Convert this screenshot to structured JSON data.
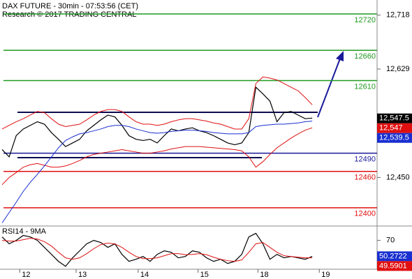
{
  "chart_data": [
    {
      "type": "line",
      "title": "DAX FUTURE - 30min - 07:53:56 (CET)",
      "subtitle": "Research © 2017 TRADING CENTRAL",
      "x": [
        0,
        1,
        2,
        3,
        4,
        5,
        6,
        7,
        8,
        9,
        10,
        11,
        12,
        13,
        14,
        15,
        16,
        17,
        18,
        19,
        20,
        21,
        22,
        23,
        24,
        25,
        26,
        27,
        28,
        29,
        30,
        31,
        32,
        33,
        34,
        35,
        36,
        37,
        38,
        39,
        40,
        41,
        42,
        43,
        44
      ],
      "xlim": [
        -0.3,
        53.2
      ],
      "xticks": [
        {
          "value": 2.5,
          "label": "12"
        },
        {
          "value": 10.5,
          "label": "13"
        },
        {
          "value": 19.3,
          "label": "14"
        },
        {
          "value": 27.8,
          "label": "15"
        },
        {
          "value": 36.3,
          "label": "18"
        },
        {
          "value": 45,
          "label": "19"
        }
      ],
      "ylim": [
        12371,
        12743
      ],
      "yticks": [
        {
          "value": 12718,
          "label": "12,718"
        },
        {
          "value": 12629,
          "label": "12,629"
        },
        {
          "value": 12450,
          "label": "12,450"
        }
      ],
      "series": [
        {
          "color": "#000000",
          "values": [
            12496,
            12484,
            12519,
            12530,
            12536,
            12542,
            12538,
            12524,
            12513,
            12501,
            12507,
            12513,
            12527,
            12536,
            12545,
            12553,
            12550,
            12536,
            12519,
            12513,
            12511,
            12513,
            12507,
            12519,
            12530,
            12527,
            12530,
            12532,
            12527,
            12524,
            12519,
            12513,
            12507,
            12504,
            12507,
            12524,
            12599,
            12588,
            12576,
            12542,
            12557,
            12559,
            12553,
            12547,
            12548
          ]
        },
        {
          "color": "#e01010",
          "values": [
            12530,
            12536,
            12542,
            12547,
            12553,
            12559,
            12557,
            12547,
            12538,
            12534,
            12536,
            12538,
            12545,
            12553,
            12559,
            12562,
            12562,
            12559,
            12550,
            12542,
            12538,
            12538,
            12536,
            12538,
            12542,
            12545,
            12547,
            12547,
            12545,
            12543,
            12540,
            12538,
            12534,
            12530,
            12530,
            12547,
            12605,
            12616,
            12614,
            12611,
            12605,
            12599,
            12593,
            12582,
            12570
          ]
        },
        {
          "color": "#e01010",
          "values": [
            12438,
            12450,
            12458,
            12467,
            12471,
            12473,
            12470,
            12467,
            12467,
            12469,
            12473,
            12478,
            12484,
            12488,
            12490,
            12492,
            12494,
            12496,
            12494,
            12492,
            12490,
            12490,
            12492,
            12494,
            12497,
            12499,
            12501,
            12501,
            12501,
            12500,
            12499,
            12498,
            12497,
            12496,
            12494,
            12484,
            12467,
            12476,
            12488,
            12499,
            12507,
            12515,
            12522,
            12528,
            12532
          ]
        },
        {
          "color": "#1a2fd0",
          "values": [
            12375,
            12392,
            12409,
            12427,
            12442,
            12455,
            12469,
            12484,
            12499,
            12511,
            12517,
            12522,
            12524,
            12527,
            12530,
            12534,
            12536,
            12536,
            12534,
            12530,
            12527,
            12524,
            12523,
            12524,
            12526,
            12527,
            12528,
            12528,
            12527,
            12526,
            12524,
            12523,
            12522,
            12522,
            12522,
            12524,
            12534,
            12536,
            12537,
            12538,
            12538,
            12539,
            12540,
            12542,
            12543
          ]
        }
      ],
      "levels": [
        {
          "value": 12720,
          "color": "#1f9a1f"
        },
        {
          "value": 12660,
          "color": "#1f9a1f"
        },
        {
          "value": 12610,
          "color": "#1f9a1f"
        },
        {
          "value": 12490,
          "color": "#1a1a9a"
        },
        {
          "value": 12460,
          "color": "#e01010"
        },
        {
          "value": 12400,
          "color": "#e01010"
        }
      ],
      "tags": [
        {
          "value": 12547.5,
          "label": "12,547.5",
          "color": "#000000"
        },
        {
          "value": 12547,
          "label": "12,547",
          "color": "#e01010"
        },
        {
          "value": 12539.5,
          "label": "12,539.5",
          "color": "#1a2fd0"
        }
      ]
    },
    {
      "type": "line",
      "title": "RSI14 - 9MA",
      "ylim": [
        35,
        87
      ],
      "yticks": [
        70
      ],
      "series": [
        {
          "color": "#000000",
          "values": [
            74.3,
            65.7,
            70,
            76.1,
            74.3,
            70,
            61.3,
            52.6,
            43.9,
            37.8,
            48.3,
            57,
            65.7,
            70,
            67.4,
            61.3,
            65.7,
            52.6,
            43.9,
            46.5,
            50,
            43.9,
            52.6,
            57,
            55.2,
            48.3,
            50,
            57,
            55.2,
            48.3,
            43.9,
            46.5,
            41.3,
            43.9,
            52.6,
            74.3,
            78.7,
            65.7,
            46.5,
            52.6,
            48.3,
            50,
            48.3,
            46.5,
            50
          ]
        },
        {
          "color": "#e01010",
          "values": [
            70,
            69.1,
            69.1,
            70.9,
            72.6,
            71.7,
            68.3,
            63,
            55.2,
            48.3,
            46.5,
            48.3,
            53.5,
            59.6,
            64.8,
            66.5,
            65.7,
            61.3,
            55.2,
            50,
            47.4,
            47.4,
            48.3,
            50.9,
            53.5,
            53.5,
            52.2,
            52.6,
            53.5,
            52.2,
            49.1,
            46.5,
            44.8,
            43.9,
            45.7,
            55.2,
            65.7,
            67.4,
            61.3,
            55.2,
            50.9,
            50,
            49.1,
            48.3,
            48.3
          ]
        }
      ],
      "tags": [
        {
          "value": 50.2722,
          "color": "#1a2fd0"
        },
        {
          "value": 49.5901,
          "color": "#e01010"
        }
      ]
    }
  ]
}
